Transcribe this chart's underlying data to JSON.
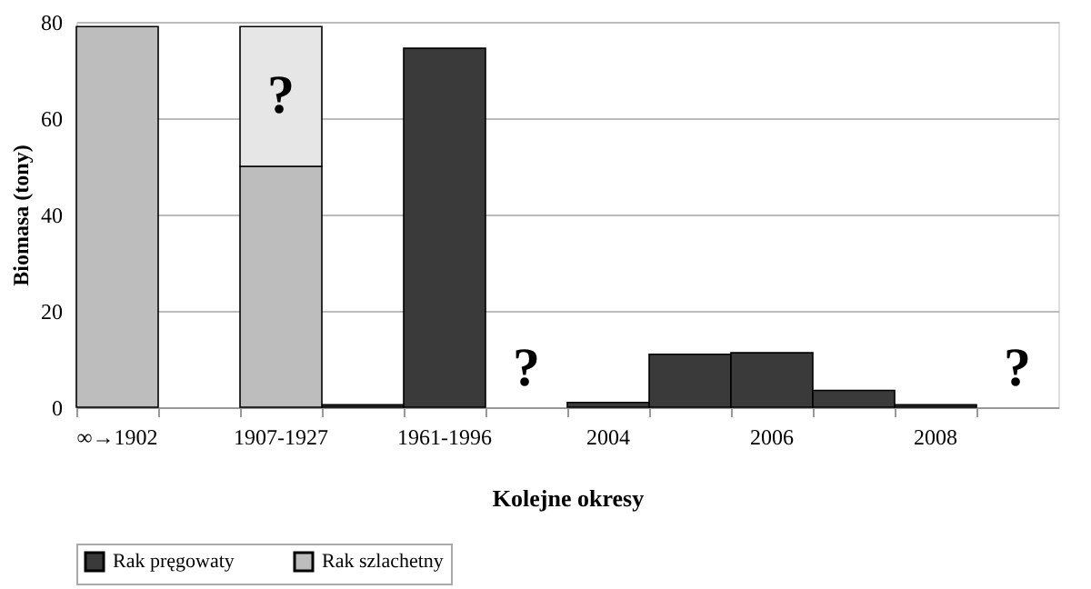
{
  "chart_data": {
    "type": "bar",
    "stacked": true,
    "xlabel": "Kolejne okresy",
    "ylabel": "Biomasa (tony)",
    "categories": [
      "∞→1902",
      null,
      "1907-1927",
      null,
      "1961-1996",
      null,
      "2004",
      null,
      "2006",
      null,
      "2008",
      null
    ],
    "series": [
      {
        "name": "Rak pręgowaty",
        "color": "#3a3a3a",
        "values": [
          null,
          null,
          null,
          0.5,
          74.5,
          null,
          1,
          11,
          11.3,
          3.5,
          0.5,
          null
        ]
      },
      {
        "name": "Rak szlachetny",
        "color": "#bdbdbd",
        "values": [
          79,
          null,
          50,
          null,
          null,
          null,
          null,
          null,
          null,
          null,
          null,
          null
        ]
      },
      {
        "color": "#e6e6e6",
        "values": [
          null,
          null,
          29,
          null,
          null,
          null,
          null,
          null,
          null,
          null,
          null,
          null
        ]
      }
    ],
    "annotations": [
      "?",
      "?",
      "?"
    ],
    "ylim": [
      0,
      80
    ],
    "yticks": [
      0,
      20,
      40,
      60,
      80
    ],
    "grid": "y",
    "legend": "bottom"
  }
}
